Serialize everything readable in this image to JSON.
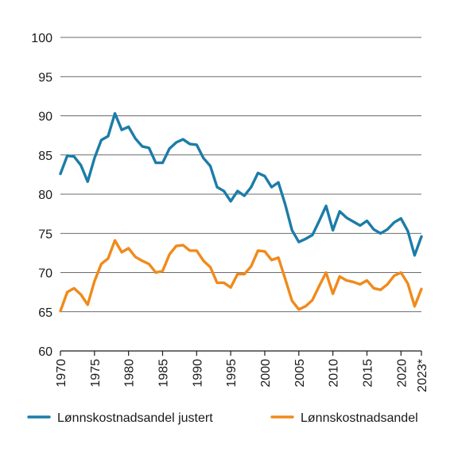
{
  "chart_data": {
    "type": "line",
    "title": "",
    "xlabel": "",
    "ylabel": "",
    "ylim": [
      60,
      100
    ],
    "yticks": [
      60,
      65,
      70,
      75,
      80,
      85,
      90,
      95,
      100
    ],
    "xlim": [
      1970,
      2023
    ],
    "xticks": [
      {
        "value": 1970,
        "label": "1970"
      },
      {
        "value": 1975,
        "label": "1975"
      },
      {
        "value": 1980,
        "label": "1980"
      },
      {
        "value": 1985,
        "label": "1985"
      },
      {
        "value": 1990,
        "label": "1990"
      },
      {
        "value": 1995,
        "label": "1995"
      },
      {
        "value": 2000,
        "label": "2000"
      },
      {
        "value": 2005,
        "label": "2005"
      },
      {
        "value": 2010,
        "label": "2010"
      },
      {
        "value": 2015,
        "label": "2015"
      },
      {
        "value": 2020,
        "label": "2020"
      },
      {
        "value": 2023,
        "label": "2023*"
      }
    ],
    "grid": true,
    "legend_position": "bottom",
    "x": [
      1970,
      1971,
      1972,
      1973,
      1974,
      1975,
      1976,
      1977,
      1978,
      1979,
      1980,
      1981,
      1982,
      1983,
      1984,
      1985,
      1986,
      1987,
      1988,
      1989,
      1990,
      1991,
      1992,
      1993,
      1994,
      1995,
      1996,
      1997,
      1998,
      1999,
      2000,
      2001,
      2002,
      2003,
      2004,
      2005,
      2006,
      2007,
      2008,
      2009,
      2010,
      2011,
      2012,
      2013,
      2014,
      2015,
      2016,
      2017,
      2018,
      2019,
      2020,
      2021,
      2022,
      2023
    ],
    "series": [
      {
        "name": "Lønnskostnadsandel justert",
        "color": "#1c7ca8",
        "values": [
          82.6,
          84.9,
          84.8,
          83.7,
          81.6,
          84.6,
          86.9,
          87.4,
          90.3,
          88.2,
          88.6,
          87.1,
          86.1,
          85.9,
          84.0,
          84.0,
          85.8,
          86.6,
          87.0,
          86.4,
          86.3,
          84.6,
          83.6,
          80.9,
          80.4,
          79.1,
          80.4,
          79.8,
          80.9,
          82.7,
          82.3,
          80.9,
          81.5,
          78.7,
          75.4,
          73.9,
          74.3,
          74.8,
          76.6,
          78.5,
          75.4,
          77.8,
          77.0,
          76.5,
          76.0,
          76.6,
          75.5,
          75.0,
          75.5,
          76.4,
          76.9,
          75.3,
          72.2,
          74.6
        ]
      },
      {
        "name": "Lønnskostnadsandel",
        "color": "#f08a1c",
        "values": [
          65.1,
          67.5,
          68.0,
          67.2,
          65.9,
          68.9,
          71.1,
          71.8,
          74.1,
          72.6,
          73.1,
          72.0,
          71.5,
          71.1,
          70.0,
          70.2,
          72.3,
          73.4,
          73.5,
          72.8,
          72.8,
          71.5,
          70.7,
          68.7,
          68.7,
          68.1,
          69.8,
          69.8,
          70.8,
          72.8,
          72.7,
          71.6,
          71.9,
          69.2,
          66.4,
          65.3,
          65.7,
          66.5,
          68.3,
          70.0,
          67.3,
          69.5,
          69.0,
          68.8,
          68.5,
          69.0,
          68.0,
          67.8,
          68.5,
          69.6,
          70.0,
          68.6,
          65.7,
          67.9
        ]
      }
    ]
  }
}
